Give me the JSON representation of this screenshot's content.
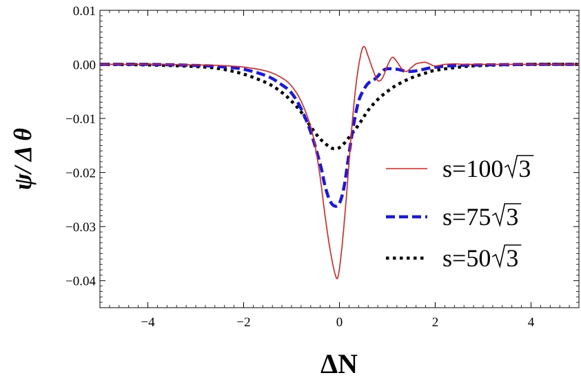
{
  "chart_data": {
    "type": "line",
    "xlabel": "ΔN",
    "ylabel": "ψ/ Δ θ",
    "xlim": [
      -5,
      5
    ],
    "ylim": [
      -0.045,
      0.01
    ],
    "x_ticks": [
      -4,
      -2,
      0,
      2,
      4
    ],
    "x_tick_labels": [
      "−4",
      "−2",
      "0",
      "2",
      "4"
    ],
    "y_ticks": [
      0.01,
      0.0,
      -0.01,
      -0.02,
      -0.03,
      -0.04
    ],
    "y_tick_labels": [
      "0.01",
      "0.00",
      "−0.01",
      "−0.02",
      "−0.03",
      "−0.04"
    ],
    "grid": false,
    "legend_position": "right",
    "series": [
      {
        "name": "s=100√3",
        "label_prefix": "s=100",
        "label_radicand": "3",
        "color": "#e0201a",
        "style": "solid",
        "x": [
          -5,
          -4,
          -3,
          -2.5,
          -2,
          -1.5,
          -1.2,
          -1.0,
          -0.8,
          -0.6,
          -0.5,
          -0.4,
          -0.3,
          -0.2,
          -0.1,
          -0.03,
          0.05,
          0.15,
          0.25,
          0.35,
          0.45,
          0.52,
          0.6,
          0.7,
          0.8,
          0.9,
          1.0,
          1.1,
          1.2,
          1.3,
          1.4,
          1.5,
          1.6,
          1.7,
          1.8,
          1.9,
          2.0,
          2.2,
          2.4,
          2.6,
          3.0,
          4.0,
          5.0
        ],
        "y": [
          0.0,
          0.0,
          -0.0001,
          -0.0002,
          -0.0005,
          -0.0013,
          -0.0025,
          -0.004,
          -0.0068,
          -0.0115,
          -0.0155,
          -0.021,
          -0.028,
          -0.034,
          -0.0385,
          -0.0393,
          -0.034,
          -0.024,
          -0.0125,
          -0.0035,
          0.002,
          0.0033,
          0.0015,
          -0.001,
          -0.003,
          -0.0025,
          -0.0003,
          0.0013,
          0.0005,
          -0.0008,
          -0.0013,
          -0.0006,
          0.0001,
          0.0003,
          0.0004,
          0.0,
          -0.0003,
          0.0,
          0.0001,
          0.0,
          0.0,
          0.0,
          0.0
        ]
      },
      {
        "name": "s=75√3",
        "label_prefix": "s=75",
        "label_radicand": "3",
        "color": "#1919e6",
        "style": "dashed",
        "x": [
          -5,
          -4,
          -3,
          -2.5,
          -2,
          -1.5,
          -1.2,
          -1.0,
          -0.8,
          -0.6,
          -0.4,
          -0.3,
          -0.2,
          -0.1,
          0.0,
          0.1,
          0.2,
          0.3,
          0.4,
          0.5,
          0.6,
          0.7,
          0.8,
          0.9,
          1.0,
          1.2,
          1.5,
          2.0,
          2.5,
          3.0,
          4.0,
          5.0
        ],
        "y": [
          0.0,
          0.0,
          -0.0002,
          -0.0004,
          -0.0009,
          -0.0022,
          -0.0038,
          -0.0053,
          -0.0082,
          -0.0125,
          -0.0185,
          -0.0225,
          -0.0252,
          -0.0262,
          -0.0257,
          -0.0225,
          -0.0165,
          -0.011,
          -0.0068,
          -0.0048,
          -0.0035,
          -0.003,
          -0.0022,
          -0.0012,
          -0.0008,
          -0.0009,
          -0.0013,
          -0.0005,
          -0.0002,
          -0.0001,
          0.0,
          0.0
        ]
      },
      {
        "name": "s=50√3",
        "label_prefix": "s=50",
        "label_radicand": "3",
        "color": "#000000",
        "style": "dotted",
        "x": [
          -5,
          -4,
          -3,
          -2.5,
          -2,
          -1.5,
          -1.2,
          -1.0,
          -0.8,
          -0.6,
          -0.4,
          -0.2,
          -0.1,
          0.0,
          0.1,
          0.2,
          0.4,
          0.6,
          0.8,
          1.0,
          1.2,
          1.5,
          1.8,
          2.0,
          2.5,
          3.0,
          4.0,
          5.0
        ],
        "y": [
          0.0,
          -0.0001,
          -0.0004,
          -0.0008,
          -0.0018,
          -0.0035,
          -0.0052,
          -0.0068,
          -0.0088,
          -0.0115,
          -0.0138,
          -0.0153,
          -0.0156,
          -0.0154,
          -0.0146,
          -0.0135,
          -0.0112,
          -0.0085,
          -0.0065,
          -0.005,
          -0.0038,
          -0.0025,
          -0.0016,
          -0.0011,
          -0.0005,
          -0.0002,
          0.0,
          0.0
        ]
      }
    ]
  }
}
